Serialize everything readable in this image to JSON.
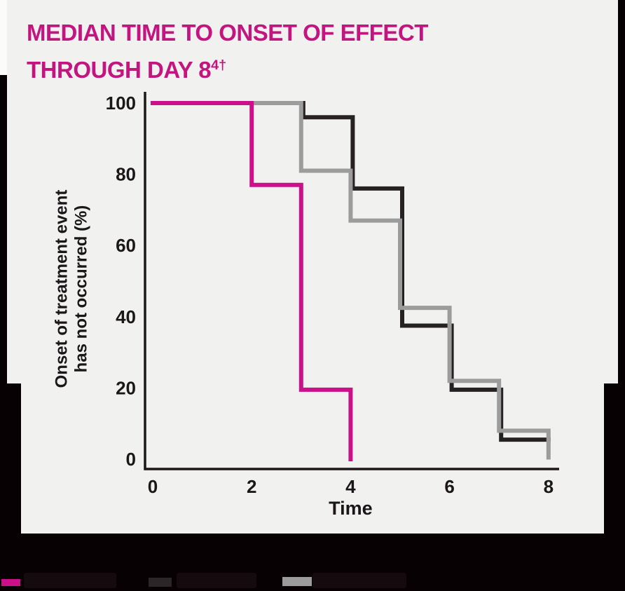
{
  "page": {
    "background": "#070103",
    "card_background": "#f1f1f0"
  },
  "title": {
    "line1": "MEDIAN TIME TO ONSET OF EFFECT",
    "line2_base": "THROUGH DAY 8",
    "line2_sup": "4†",
    "color": "#c3157f"
  },
  "chart_data": {
    "type": "line",
    "subtype": "kaplan-meier-step",
    "title": "MEDIAN TIME TO ONSET OF EFFECT THROUGH DAY 8",
    "xlabel": "Time",
    "ylabel": "Onset of treatment event has not occurred (%)",
    "ylabel_lines": [
      "Onset of treatment event",
      "has not occurred (%)"
    ],
    "xlim": [
      0,
      8
    ],
    "ylim": [
      0,
      100
    ],
    "x_ticks": [
      0,
      2,
      4,
      6,
      8
    ],
    "y_ticks": [
      100,
      80,
      60,
      40,
      20,
      0
    ],
    "grid": false,
    "legend_position": "bottom",
    "axis_color": "#1c1719",
    "tick_label_color": "#1b1719",
    "series": [
      {
        "name": "series-black",
        "color": "#262223",
        "points": [
          [
            3,
            100
          ],
          [
            3,
            96
          ],
          [
            4,
            96
          ],
          [
            4,
            76
          ],
          [
            5,
            76
          ],
          [
            5,
            37.5
          ],
          [
            6,
            37.5
          ],
          [
            6,
            19.5
          ],
          [
            7,
            19.5
          ],
          [
            7,
            5.5
          ],
          [
            8,
            5.5
          ]
        ]
      },
      {
        "name": "series-gray",
        "color": "#9c9c9c",
        "points": [
          [
            0,
            100
          ],
          [
            3,
            100
          ],
          [
            3,
            81
          ],
          [
            4,
            81
          ],
          [
            4,
            67
          ],
          [
            5,
            67
          ],
          [
            5,
            42.5
          ],
          [
            6,
            42.5
          ],
          [
            6,
            22
          ],
          [
            7,
            22
          ],
          [
            7,
            8
          ],
          [
            8,
            8
          ],
          [
            8,
            0.5
          ]
        ]
      },
      {
        "name": "series-pink",
        "color": "#cb1089",
        "points": [
          [
            0,
            100
          ],
          [
            2,
            100
          ],
          [
            2,
            77
          ],
          [
            3,
            77
          ],
          [
            3,
            19.5
          ],
          [
            4,
            19.5
          ],
          [
            4,
            0
          ]
        ]
      }
    ]
  },
  "legend": {
    "items": [
      {
        "name": "legend-item-pink",
        "swatch_color": "#cb1089",
        "label": "",
        "label_redacted": true
      },
      {
        "name": "legend-item-black",
        "swatch_color": "#2a2526",
        "label": "",
        "label_redacted": true
      },
      {
        "name": "legend-item-gray",
        "swatch_color": "#9c9c9c",
        "label": "",
        "label_redacted": true
      }
    ]
  }
}
